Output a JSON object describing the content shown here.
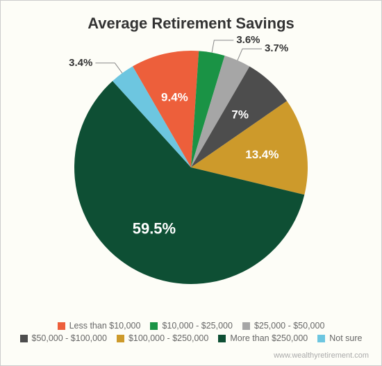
{
  "chart": {
    "type": "pie",
    "title": "Average Retirement Savings",
    "title_fontsize": 22,
    "background_color": "#fdfdf7",
    "border_color": "#cccccc",
    "slices": [
      {
        "label": "Less than $10,000",
        "value": 9.4,
        "display": "9.4%",
        "color": "#ed5f3b",
        "label_color": "#ffffff",
        "label_inside": true
      },
      {
        "label": "$10,000 - $25,000",
        "value": 3.6,
        "display": "3.6%",
        "color": "#1a9345",
        "label_color": "#333333",
        "label_inside": false
      },
      {
        "label": "$25,000 - $50,000",
        "value": 3.7,
        "display": "3.7%",
        "color": "#a6a6a6",
        "label_color": "#333333",
        "label_inside": false
      },
      {
        "label": "$50,000 - $100,000",
        "value": 7.0,
        "display": "7%",
        "color": "#4d4d4d",
        "label_color": "#ffffff",
        "label_inside": true
      },
      {
        "label": "$100,000 - $250,000",
        "value": 13.4,
        "display": "13.4%",
        "color": "#cd9a2b",
        "label_color": "#ffffff",
        "label_inside": true
      },
      {
        "label": "More than $250,000",
        "value": 59.5,
        "display": "59.5%",
        "color": "#0e4f34",
        "label_color": "#ffffff",
        "label_inside": true
      },
      {
        "label": "Not sure",
        "value": 3.4,
        "display": "3.4%",
        "color": "#6dc6e0",
        "label_color": "#333333",
        "label_inside": false
      }
    ],
    "start_angle_deg": -30,
    "radius": 168,
    "legend_text_color": "#666666",
    "attribution": "www.wealthyretirement.com",
    "attribution_color": "#aaaaaa"
  }
}
